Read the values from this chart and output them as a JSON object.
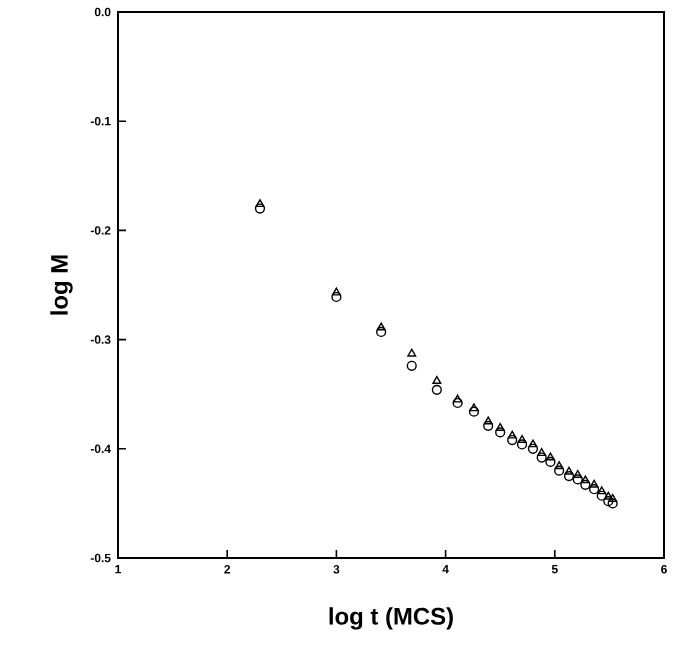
{
  "chart_data": {
    "type": "scatter",
    "xlabel": "log t (MCS)",
    "ylabel": "log M",
    "xlim": [
      1,
      6
    ],
    "ylim": [
      -0.5,
      0
    ],
    "xticks": [
      1,
      2,
      3,
      4,
      5,
      6
    ],
    "yticks": [
      {
        "value": 0,
        "label": "0.0"
      },
      -0.1,
      -0.2,
      -0.3,
      -0.4,
      -0.5
    ],
    "grid": false,
    "legend": false,
    "series": [
      {
        "color": "#000000",
        "marker": "triangle",
        "x": [
          2.3,
          3.0,
          3.41,
          3.69,
          3.92,
          4.11,
          4.26,
          4.39,
          4.5,
          4.61,
          4.7,
          4.8,
          4.88,
          4.96,
          5.04,
          5.13,
          5.21,
          5.28,
          5.36,
          5.43,
          5.49,
          5.53
        ],
        "values": [
          -0.176,
          -0.257,
          -0.289,
          -0.313,
          -0.338,
          -0.355,
          -0.363,
          -0.375,
          -0.381,
          -0.388,
          -0.392,
          -0.396,
          -0.404,
          -0.408,
          -0.416,
          -0.421,
          -0.424,
          -0.429,
          -0.433,
          -0.439,
          -0.444,
          -0.446
        ]
      },
      {
        "color": "#000000",
        "marker": "circle",
        "x": [
          2.3,
          3.0,
          3.41,
          3.69,
          3.92,
          4.11,
          4.26,
          4.39,
          4.5,
          4.61,
          4.7,
          4.8,
          4.88,
          4.96,
          5.04,
          5.13,
          5.21,
          5.28,
          5.36,
          5.43,
          5.49,
          5.53
        ],
        "values": [
          -0.18,
          -0.261,
          -0.293,
          -0.324,
          -0.346,
          -0.358,
          -0.366,
          -0.379,
          -0.385,
          -0.392,
          -0.396,
          -0.4,
          -0.408,
          -0.412,
          -0.42,
          -0.425,
          -0.428,
          -0.433,
          -0.437,
          -0.443,
          -0.448,
          -0.45
        ]
      }
    ]
  }
}
